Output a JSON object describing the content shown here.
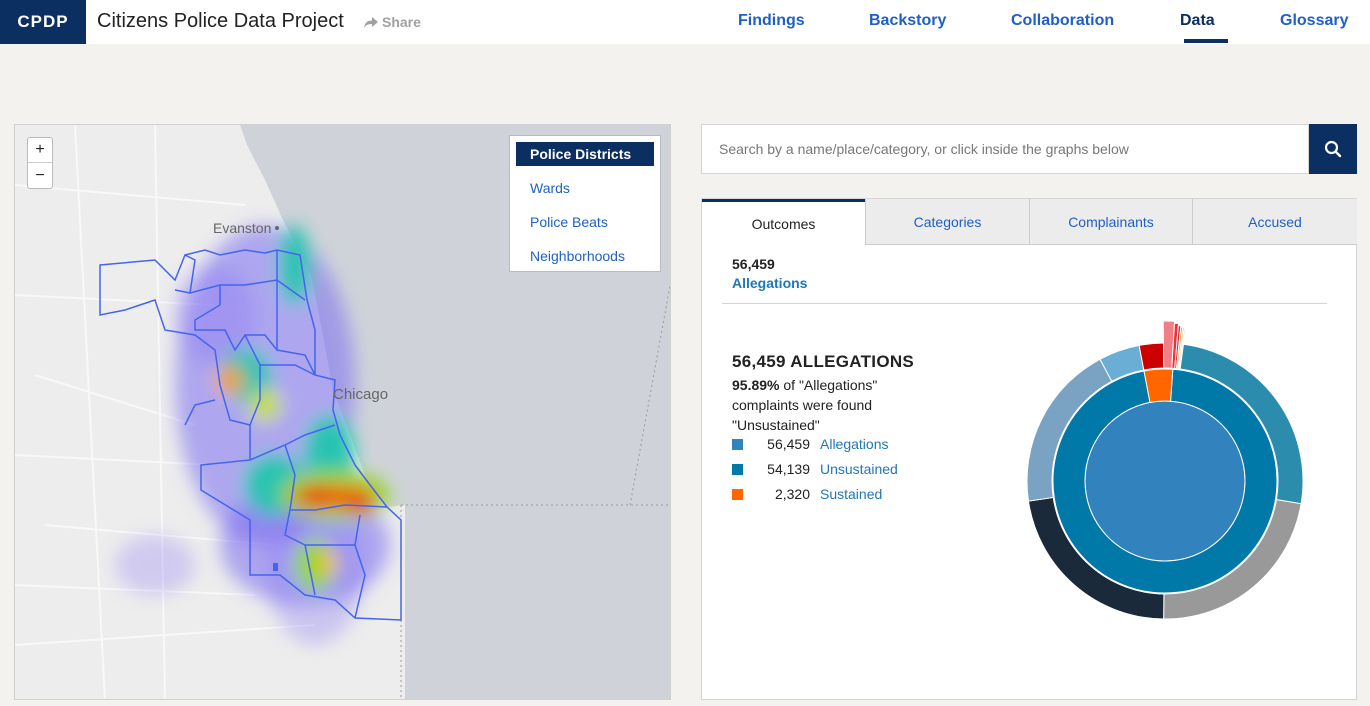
{
  "header": {
    "logo": "CPDP",
    "title": "Citizens Police Data Project",
    "share_label": "Share",
    "nav": [
      {
        "label": "Findings",
        "active": false
      },
      {
        "label": "Backstory",
        "active": false
      },
      {
        "label": "Collaboration",
        "active": false
      },
      {
        "label": "Data",
        "active": true
      },
      {
        "label": "Glossary",
        "active": false
      }
    ]
  },
  "map": {
    "zoom_in": "+",
    "zoom_out": "−",
    "layers": [
      "Police Districts",
      "Wards",
      "Police Beats",
      "Neighborhoods"
    ],
    "active_layer": "Police Districts",
    "labels": {
      "evanston": "Evanston",
      "chicago": "Chicago"
    }
  },
  "search": {
    "placeholder": "Search by a name/place/category, or click inside the graphs below",
    "button_icon": "search-icon"
  },
  "tabs": [
    "Outcomes",
    "Categories",
    "Complainants",
    "Accused"
  ],
  "active_tab": "Outcomes",
  "breadcrumb": {
    "count": "56,459",
    "label": "Allegations"
  },
  "summary": {
    "title": "56,459 ALLEGATIONS",
    "pct": "95.89%",
    "text_after": " of \"Allegations\" complaints were found \"Unsustained\""
  },
  "legend": [
    {
      "value": "56,459",
      "name": "Allegations",
      "color": "#3182bd"
    },
    {
      "value": "54,139",
      "name": "Unsustained",
      "color": "#0078a8"
    },
    {
      "value": "2,320",
      "name": "Sustained",
      "color": "#ff6600"
    }
  ],
  "chart_data": {
    "type": "pie",
    "title": "",
    "center": {
      "name": "Allegations",
      "value": 56459,
      "color": "#3182bd"
    },
    "middle_ring": [
      {
        "name": "Unsustained",
        "value": 54139,
        "color": "#0078a8"
      },
      {
        "name": "Sustained",
        "value": 2320,
        "color": "#ff6600"
      }
    ],
    "outer_ring_unsustained": [
      {
        "value": 0.265,
        "color": "#2b8cae"
      },
      {
        "value": 0.225,
        "color": "#999999"
      },
      {
        "value": 0.225,
        "color": "#1b2a3a"
      },
      {
        "value": 0.195,
        "color": "#7aa2c2"
      },
      {
        "value": 0.048,
        "color": "#6aaed6"
      }
    ],
    "outer_ring_sustained": [
      {
        "value": 0.55,
        "color": "#cc0000"
      },
      {
        "value": 0.22,
        "color": "#f07f88"
      },
      {
        "value": 0.08,
        "color": "#e8333a"
      },
      {
        "value": 0.05,
        "color": "#d92c2c"
      },
      {
        "value": 0.04,
        "color": "#ff9b50"
      },
      {
        "value": 0.03,
        "color": "#f4b000"
      },
      {
        "value": 0.03,
        "color": "#e0e0e0"
      }
    ]
  }
}
